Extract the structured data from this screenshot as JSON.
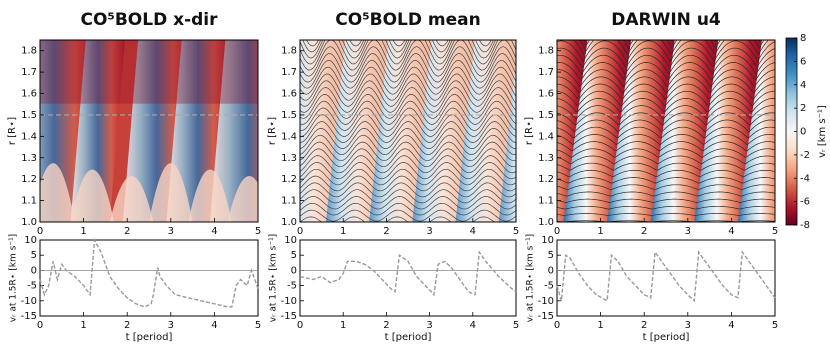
{
  "chart_data": [
    {
      "type": "heatmap",
      "title": "CO⁵BOLD x-dir",
      "y_label": "r [R⋆]",
      "xlim": [
        0,
        5
      ],
      "xticks": [
        0,
        1,
        2,
        3,
        4,
        5
      ],
      "ylim": [
        1.0,
        1.85
      ],
      "yticks": [
        {
          "value": 1.0,
          "label": "1.0"
        },
        1.1,
        1.2,
        1.3,
        1.4,
        1.5,
        1.6,
        1.7,
        1.8
      ],
      "hline": 1.5
    },
    {
      "type": "heatmap",
      "title": "CO⁵BOLD mean",
      "y_label": "r [R⋆]",
      "xlim": [
        0,
        5
      ],
      "xticks": [
        0,
        1,
        2,
        3,
        4,
        5
      ],
      "ylim": [
        1.0,
        1.85
      ],
      "yticks": [
        {
          "value": 1.0,
          "label": "1.0"
        },
        1.1,
        1.2,
        1.3,
        1.4,
        1.5,
        1.6,
        1.7,
        1.8
      ],
      "hline": 1.5
    },
    {
      "type": "heatmap",
      "title": "DARWIN u4",
      "y_label": "r [R⋆]",
      "xlim": [
        0,
        5
      ],
      "xticks": [
        0,
        1,
        2,
        3,
        4,
        5
      ],
      "ylim": [
        1.0,
        1.85
      ],
      "yticks": [
        {
          "value": 1.0,
          "label": "1.0"
        },
        1.1,
        1.2,
        1.3,
        1.4,
        1.5,
        1.6,
        1.7,
        1.8
      ],
      "hline": 1.5
    },
    {
      "type": "colorbar",
      "label": "vᵣ [km s⁻¹]",
      "ylim": [
        -8,
        8
      ],
      "yticks": [
        -8,
        -6,
        -4,
        -2,
        0,
        2,
        4,
        6,
        8
      ]
    },
    {
      "type": "line",
      "x_label": "t [period]",
      "y_label": "vᵣ at 1.5R⋆ [km s⁻¹]",
      "xlim": [
        0,
        5
      ],
      "xticks": [
        0,
        1,
        2,
        3,
        4,
        5
      ],
      "ylim": [
        -15,
        10
      ],
      "yticks": [
        -15,
        -10,
        -5,
        0,
        5,
        10
      ],
      "hline": 0,
      "color": "#999999",
      "x": [
        0,
        0.1,
        0.2,
        0.3,
        0.4,
        0.5,
        0.6,
        0.8,
        1.0,
        1.15,
        1.25,
        1.4,
        1.6,
        1.8,
        2.0,
        2.2,
        2.4,
        2.55,
        2.6,
        2.7,
        2.75,
        2.9,
        3.1,
        3.4,
        3.7,
        4.0,
        4.3,
        4.4,
        4.5,
        4.6,
        4.75,
        4.85,
        5
      ],
      "values": [
        -3,
        -8,
        -5,
        3,
        -3,
        2,
        0,
        -2,
        -5,
        -8,
        10,
        6,
        -2,
        -6,
        -9,
        -11,
        -12,
        -11,
        -8,
        1,
        -2,
        -5,
        -8,
        -9,
        -10,
        -11,
        -12,
        -12,
        -5,
        -3,
        -5,
        0,
        -6
      ]
    },
    {
      "type": "line",
      "x_label": "t [period]",
      "y_label": "vᵣ at 1.5R⋆ [km s⁻¹]",
      "xlim": [
        0,
        5
      ],
      "xticks": [
        0,
        1,
        2,
        3,
        4,
        5
      ],
      "ylim": [
        -15,
        10
      ],
      "yticks": [
        -15,
        -10,
        -5,
        0,
        5,
        10
      ],
      "hline": 0,
      "color": "#999999",
      "x": [
        0,
        0.3,
        0.5,
        0.7,
        0.9,
        1.0,
        1.1,
        1.3,
        1.5,
        1.7,
        1.9,
        2.1,
        2.2,
        2.3,
        2.5,
        2.7,
        2.9,
        3.1,
        3.2,
        3.35,
        3.5,
        3.7,
        3.9,
        4.05,
        4.15,
        4.3,
        4.6,
        4.9,
        5
      ],
      "values": [
        -2,
        -3,
        -2,
        -4,
        -3,
        -1,
        3,
        3,
        2,
        0,
        -3,
        -6,
        -7,
        5,
        3,
        -2,
        -5,
        -8,
        2,
        3,
        1,
        -3,
        -7,
        -8,
        6,
        3,
        -2,
        -6,
        -7
      ]
    },
    {
      "type": "line",
      "x_label": "t [period]",
      "y_label": "vᵣ at 1.5R⋆ [km s⁻¹]",
      "xlim": [
        0,
        5
      ],
      "xticks": [
        0,
        1,
        2,
        3,
        4,
        5
      ],
      "ylim": [
        -15,
        10
      ],
      "yticks": [
        -15,
        -10,
        -5,
        0,
        5,
        10
      ],
      "hline": 0,
      "color": "#999999",
      "x": [
        0,
        0.1,
        0.2,
        0.3,
        0.5,
        0.7,
        0.9,
        1.15,
        1.25,
        1.4,
        1.6,
        1.8,
        2.0,
        2.15,
        2.25,
        2.4,
        2.6,
        2.8,
        3.0,
        3.15,
        3.25,
        3.4,
        3.6,
        3.8,
        4.0,
        4.15,
        4.25,
        4.4,
        4.6,
        4.8,
        5
      ],
      "values": [
        -5,
        -10,
        5,
        4,
        -1,
        -5,
        -8,
        -10,
        5,
        3,
        -2,
        -5,
        -8,
        -9,
        6,
        3,
        -1,
        -5,
        -8,
        -10,
        6,
        3,
        -1,
        -5,
        -8,
        -9,
        6,
        3,
        -1,
        -5,
        -9
      ]
    }
  ]
}
